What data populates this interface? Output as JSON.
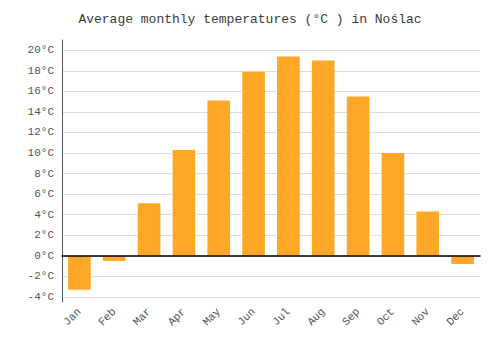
{
  "chart_data": {
    "type": "bar",
    "title": "Average monthly temperatures (°C ) in Noślac",
    "categories": [
      "Jan",
      "Feb",
      "Mar",
      "Apr",
      "May",
      "Jun",
      "Jul",
      "Aug",
      "Sep",
      "Oct",
      "Nov",
      "Dec"
    ],
    "values": [
      -3.3,
      -0.5,
      5.1,
      10.3,
      15.1,
      17.9,
      19.4,
      19.0,
      15.5,
      10.0,
      4.3,
      -0.8
    ],
    "color": "#FFA726",
    "ylim": [
      -4.5,
      21
    ],
    "yticks": [
      {
        "value": -4,
        "label": "-4°C"
      },
      {
        "value": -2,
        "label": "-2°C"
      },
      {
        "value": 0,
        "label": "0°C"
      },
      {
        "value": 2,
        "label": "2°C"
      },
      {
        "value": 4,
        "label": "4°C"
      },
      {
        "value": 6,
        "label": "6°C"
      },
      {
        "value": 8,
        "label": "8°C"
      },
      {
        "value": 10,
        "label": "10°C"
      },
      {
        "value": 12,
        "label": "12°C"
      },
      {
        "value": 14,
        "label": "14°C"
      },
      {
        "value": 16,
        "label": "16°C"
      },
      {
        "value": 18,
        "label": "18°C"
      },
      {
        "value": 20,
        "label": "20°C"
      }
    ],
    "grid": true
  }
}
